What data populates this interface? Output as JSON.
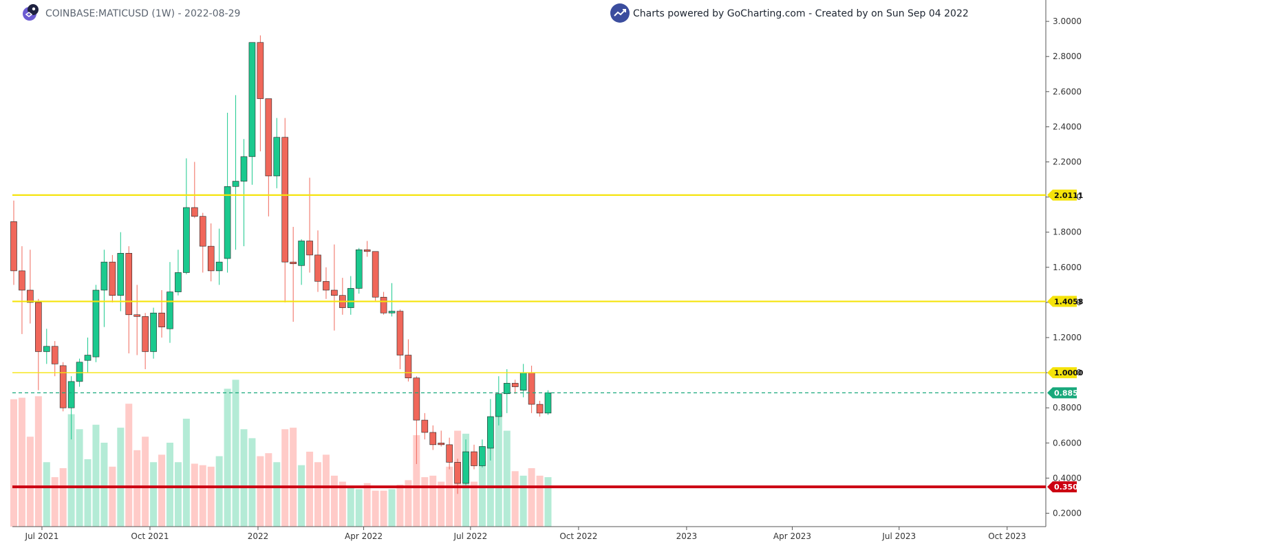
{
  "header": {
    "symbol": "COINBASE:MATICUSD (1W) - 2022-08-29",
    "credit": "Charts powered by GoCharting.com - Created by  on Sun Sep 04 2022"
  },
  "colors": {
    "up": "#1bc98e",
    "down": "#f0675a",
    "volume_up": "#b4ebd6",
    "volume_down": "#ffcbc8",
    "level_yellow": "#f5e30a",
    "level_red": "#cc0011",
    "last_price": "#18a87b",
    "axis_text": "#333333",
    "logo": "#3b4d9e"
  },
  "chart_data": {
    "type": "candlestick",
    "title": "COINBASE:MATICUSD (1W) - 2022-08-29",
    "ylim": [
      0.1,
      3.1
    ],
    "y_ticks": [
      "0.2000",
      "0.4000",
      "0.6000",
      "0.8000",
      "1.0000",
      "1.2000",
      "1.4000",
      "1.6000",
      "1.8000",
      "2.0000",
      "2.2000",
      "2.4000",
      "2.6000",
      "2.8000",
      "3.0000"
    ],
    "x_ticks": [
      {
        "label": "Jul 2021",
        "date": "2021-07-01"
      },
      {
        "label": "Oct 2021",
        "date": "2021-10-01"
      },
      {
        "label": "2022",
        "date": "2022-01-01"
      },
      {
        "label": "Apr 2022",
        "date": "2022-04-01"
      },
      {
        "label": "Jul 2022",
        "date": "2022-07-01"
      },
      {
        "label": "Oct 2022",
        "date": "2022-10-01"
      },
      {
        "label": "2023",
        "date": "2023-01-01"
      },
      {
        "label": "Apr 2023",
        "date": "2023-04-01"
      },
      {
        "label": "Jul 2023",
        "date": "2023-07-01"
      },
      {
        "label": "Oct 2023",
        "date": "2023-10-01"
      }
    ],
    "first_week": "2021-06-07",
    "candles": [
      {
        "o": 1.86,
        "h": 1.98,
        "l": 1.5,
        "c": 1.58
      },
      {
        "o": 1.58,
        "h": 1.72,
        "l": 1.22,
        "c": 1.47
      },
      {
        "o": 1.47,
        "h": 1.7,
        "l": 1.28,
        "c": 1.4
      },
      {
        "o": 1.4,
        "h": 1.42,
        "l": 0.9,
        "c": 1.12
      },
      {
        "o": 1.12,
        "h": 1.25,
        "l": 1.05,
        "c": 1.15
      },
      {
        "o": 1.15,
        "h": 1.18,
        "l": 0.98,
        "c": 1.05
      },
      {
        "o": 1.04,
        "h": 1.06,
        "l": 0.78,
        "c": 0.8
      },
      {
        "o": 0.8,
        "h": 0.98,
        "l": 0.62,
        "c": 0.95
      },
      {
        "o": 0.95,
        "h": 1.08,
        "l": 0.92,
        "c": 1.06
      },
      {
        "o": 1.07,
        "h": 1.2,
        "l": 1.0,
        "c": 1.1
      },
      {
        "o": 1.09,
        "h": 1.5,
        "l": 1.06,
        "c": 1.47
      },
      {
        "o": 1.47,
        "h": 1.7,
        "l": 1.26,
        "c": 1.63
      },
      {
        "o": 1.63,
        "h": 1.67,
        "l": 1.4,
        "c": 1.44
      },
      {
        "o": 1.44,
        "h": 1.8,
        "l": 1.35,
        "c": 1.68
      },
      {
        "o": 1.68,
        "h": 1.72,
        "l": 1.11,
        "c": 1.33
      },
      {
        "o": 1.33,
        "h": 1.5,
        "l": 1.1,
        "c": 1.32
      },
      {
        "o": 1.32,
        "h": 1.34,
        "l": 1.02,
        "c": 1.12
      },
      {
        "o": 1.12,
        "h": 1.37,
        "l": 1.08,
        "c": 1.34
      },
      {
        "o": 1.34,
        "h": 1.47,
        "l": 1.2,
        "c": 1.26
      },
      {
        "o": 1.25,
        "h": 1.63,
        "l": 1.17,
        "c": 1.46
      },
      {
        "o": 1.46,
        "h": 1.7,
        "l": 1.44,
        "c": 1.57
      },
      {
        "o": 1.57,
        "h": 2.22,
        "l": 1.56,
        "c": 1.94
      },
      {
        "o": 1.94,
        "h": 2.2,
        "l": 1.88,
        "c": 1.89
      },
      {
        "o": 1.89,
        "h": 1.91,
        "l": 1.57,
        "c": 1.72
      },
      {
        "o": 1.72,
        "h": 1.85,
        "l": 1.52,
        "c": 1.58
      },
      {
        "o": 1.58,
        "h": 1.82,
        "l": 1.5,
        "c": 1.63
      },
      {
        "o": 1.65,
        "h": 2.48,
        "l": 1.57,
        "c": 2.06
      },
      {
        "o": 2.06,
        "h": 2.58,
        "l": 1.7,
        "c": 2.09
      },
      {
        "o": 2.09,
        "h": 2.33,
        "l": 1.72,
        "c": 2.23
      },
      {
        "o": 2.23,
        "h": 2.88,
        "l": 2.07,
        "c": 2.88
      },
      {
        "o": 2.88,
        "h": 2.92,
        "l": 2.26,
        "c": 2.56
      },
      {
        "o": 2.56,
        "h": 2.56,
        "l": 1.89,
        "c": 2.12
      },
      {
        "o": 2.12,
        "h": 2.45,
        "l": 2.05,
        "c": 2.34
      },
      {
        "o": 2.34,
        "h": 2.45,
        "l": 1.4,
        "c": 1.63
      },
      {
        "o": 1.63,
        "h": 1.83,
        "l": 1.29,
        "c": 1.62
      },
      {
        "o": 1.61,
        "h": 1.76,
        "l": 1.5,
        "c": 1.75
      },
      {
        "o": 1.75,
        "h": 2.11,
        "l": 1.57,
        "c": 1.67
      },
      {
        "o": 1.67,
        "h": 1.81,
        "l": 1.46,
        "c": 1.52
      },
      {
        "o": 1.52,
        "h": 1.6,
        "l": 1.42,
        "c": 1.47
      },
      {
        "o": 1.47,
        "h": 1.73,
        "l": 1.24,
        "c": 1.44
      },
      {
        "o": 1.44,
        "h": 1.54,
        "l": 1.33,
        "c": 1.37
      },
      {
        "o": 1.37,
        "h": 1.55,
        "l": 1.33,
        "c": 1.48
      },
      {
        "o": 1.48,
        "h": 1.71,
        "l": 1.45,
        "c": 1.7
      },
      {
        "o": 1.7,
        "h": 1.75,
        "l": 1.66,
        "c": 1.69
      },
      {
        "o": 1.69,
        "h": 1.69,
        "l": 1.41,
        "c": 1.43
      },
      {
        "o": 1.43,
        "h": 1.46,
        "l": 1.33,
        "c": 1.34
      },
      {
        "o": 1.34,
        "h": 1.51,
        "l": 1.32,
        "c": 1.35
      },
      {
        "o": 1.35,
        "h": 1.36,
        "l": 1.02,
        "c": 1.1
      },
      {
        "o": 1.1,
        "h": 1.19,
        "l": 0.95,
        "c": 0.97
      },
      {
        "o": 0.97,
        "h": 0.98,
        "l": 0.48,
        "c": 0.73
      },
      {
        "o": 0.73,
        "h": 0.77,
        "l": 0.62,
        "c": 0.66
      },
      {
        "o": 0.66,
        "h": 0.7,
        "l": 0.56,
        "c": 0.59
      },
      {
        "o": 0.6,
        "h": 0.67,
        "l": 0.58,
        "c": 0.59
      },
      {
        "o": 0.59,
        "h": 0.63,
        "l": 0.45,
        "c": 0.49
      },
      {
        "o": 0.49,
        "h": 0.51,
        "l": 0.31,
        "c": 0.37
      },
      {
        "o": 0.37,
        "h": 0.62,
        "l": 0.36,
        "c": 0.55
      },
      {
        "o": 0.55,
        "h": 0.59,
        "l": 0.45,
        "c": 0.47
      },
      {
        "o": 0.47,
        "h": 0.62,
        "l": 0.46,
        "c": 0.58
      },
      {
        "o": 0.57,
        "h": 0.85,
        "l": 0.5,
        "c": 0.75
      },
      {
        "o": 0.75,
        "h": 0.98,
        "l": 0.7,
        "c": 0.88
      },
      {
        "o": 0.88,
        "h": 1.02,
        "l": 0.77,
        "c": 0.94
      },
      {
        "o": 0.94,
        "h": 0.96,
        "l": 0.88,
        "c": 0.92
      },
      {
        "o": 0.9,
        "h": 1.05,
        "l": 0.86,
        "c": 1.0
      },
      {
        "o": 1.0,
        "h": 1.04,
        "l": 0.77,
        "c": 0.82
      },
      {
        "o": 0.82,
        "h": 0.84,
        "l": 0.75,
        "c": 0.77
      },
      {
        "o": 0.77,
        "h": 0.9,
        "l": 0.76,
        "c": 0.8855
      }
    ],
    "volume_relative": [
      0.85,
      0.86,
      0.6,
      0.87,
      0.43,
      0.33,
      0.39,
      0.75,
      0.65,
      0.45,
      0.68,
      0.56,
      0.4,
      0.66,
      0.82,
      0.51,
      0.6,
      0.43,
      0.48,
      0.56,
      0.43,
      0.72,
      0.42,
      0.41,
      0.4,
      0.47,
      0.92,
      0.98,
      0.65,
      0.59,
      0.47,
      0.49,
      0.43,
      0.65,
      0.66,
      0.41,
      0.5,
      0.43,
      0.48,
      0.34,
      0.3,
      0.26,
      0.25,
      0.29,
      0.24,
      0.24,
      0.25,
      0.28,
      0.31,
      0.61,
      0.33,
      0.34,
      0.3,
      0.4,
      0.64,
      0.62,
      0.3,
      0.44,
      0.54,
      0.77,
      0.64,
      0.37,
      0.34,
      0.39,
      0.34,
      0.33
    ],
    "levels": [
      {
        "value": 2.0111,
        "label": "2.0111",
        "color": "#f5e30a",
        "width": "thick"
      },
      {
        "value": 1.4058,
        "label": "1.4058",
        "color": "#f5e30a",
        "width": "thick"
      },
      {
        "value": 1.0,
        "label": "1.0000",
        "color": "#f5e30a",
        "width": "thin"
      },
      {
        "value": 0.35,
        "label": "0.3500",
        "color": "#cc0011",
        "width": "thick"
      }
    ],
    "last_price": {
      "value": 0.8855,
      "label": "0.8855"
    },
    "grid": false,
    "legend": "none"
  }
}
